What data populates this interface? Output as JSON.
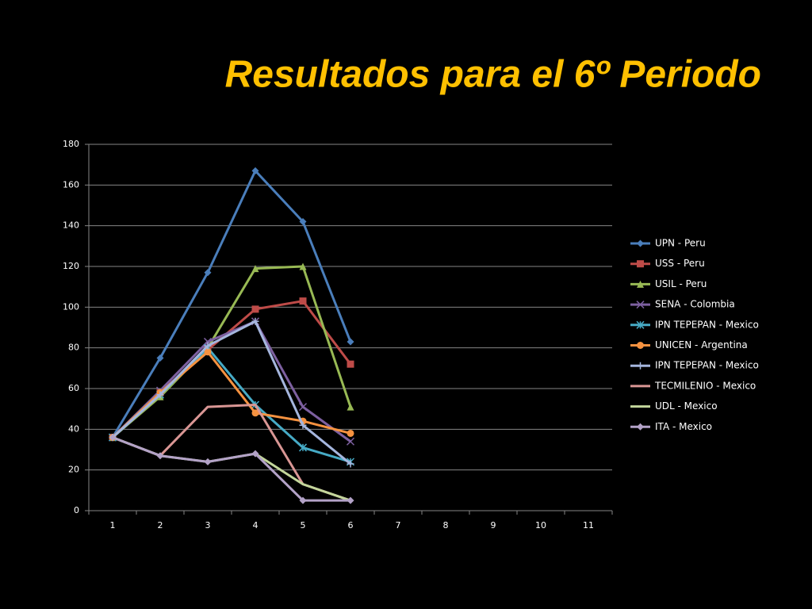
{
  "chart_data": {
    "type": "line",
    "title": "Resultados para el 6º Periodo",
    "categories": [
      "1",
      "2",
      "3",
      "4",
      "5",
      "6",
      "7",
      "8",
      "9",
      "10",
      "11"
    ],
    "ylim": [
      0,
      180
    ],
    "yticks": [
      0,
      20,
      40,
      60,
      80,
      100,
      120,
      140,
      160,
      180
    ],
    "grid": true,
    "legend": "right",
    "series": [
      {
        "name": "UPN - Peru",
        "color": "#4a7ebb",
        "marker": "diamond",
        "values": [
          36,
          75,
          117,
          167,
          142,
          83,
          null,
          null,
          null,
          null,
          null
        ]
      },
      {
        "name": "USS - Peru",
        "color": "#be4b48",
        "marker": "square",
        "values": [
          36,
          58,
          79,
          99,
          103,
          72,
          null,
          null,
          null,
          null,
          null
        ]
      },
      {
        "name": "USIL - Peru",
        "color": "#98b954",
        "marker": "triangle",
        "values": [
          36,
          56,
          80,
          119,
          120,
          51,
          null,
          null,
          null,
          null,
          null
        ]
      },
      {
        "name": "SENA - Colombia",
        "color": "#7d60a0",
        "marker": "x",
        "values": [
          36,
          59,
          83,
          93,
          51,
          34,
          null,
          null,
          null,
          null,
          null
        ]
      },
      {
        "name": "IPN TEPEPAN - Mexico",
        "color": "#46aac5",
        "marker": "star",
        "values": [
          36,
          57,
          80,
          52,
          31,
          24,
          null,
          null,
          null,
          null,
          null
        ]
      },
      {
        "name": "UNICEN - Argentina",
        "color": "#f69240",
        "marker": "circle",
        "values": [
          36,
          58,
          78,
          48,
          44,
          38,
          null,
          null,
          null,
          null,
          null
        ]
      },
      {
        "name": "IPN TEPEPAN - Mexico",
        "color": "#a5b6de",
        "marker": "plus",
        "values": [
          36,
          57,
          81,
          93,
          42,
          23,
          null,
          null,
          null,
          null,
          null
        ]
      },
      {
        "name": "TECMILENIO - Mexico",
        "color": "#d99694",
        "marker": "none",
        "values": [
          36,
          27,
          51,
          52,
          13,
          5,
          null,
          null,
          null,
          null,
          null
        ]
      },
      {
        "name": "UDL - Mexico",
        "color": "#c3d69b",
        "marker": "none",
        "values": [
          36,
          27,
          24,
          28,
          13,
          5,
          null,
          null,
          null,
          null,
          null
        ]
      },
      {
        "name": "ITA - Mexico",
        "color": "#b3a2c7",
        "marker": "diamond",
        "values": [
          36,
          27,
          24,
          28,
          5,
          5,
          null,
          null,
          null,
          null,
          null
        ]
      }
    ]
  }
}
